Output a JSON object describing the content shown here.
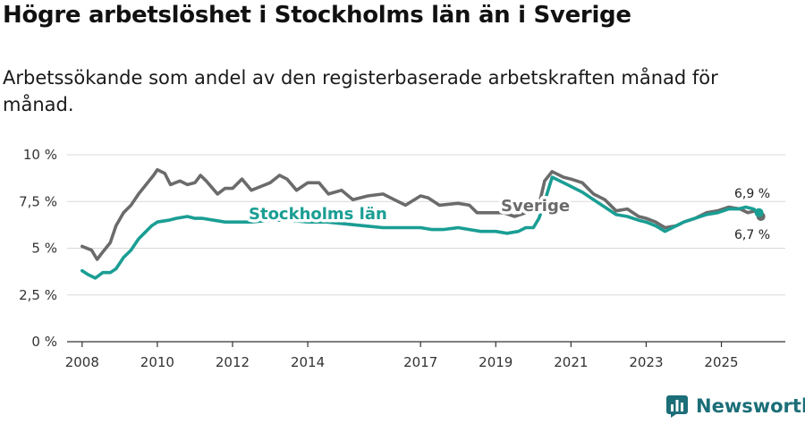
{
  "title": "Högre arbetslöshet i Stockholms län än i Sverige",
  "subtitle": "Arbetssökande som andel av den registerbaserade arbetskraften månad för månad.",
  "brand": "Newsworthy",
  "chart_data": {
    "type": "line",
    "title": "Högre arbetslöshet i Stockholms län än i Sverige",
    "ylim": [
      0,
      10
    ],
    "yticks": [
      0,
      2.5,
      5,
      7.5,
      10
    ],
    "ytick_labels": [
      "0 %",
      "2,5 %",
      "5 %",
      "7,5 %",
      "10 %"
    ],
    "xlim": [
      2007.6,
      2026.7
    ],
    "xticks": [
      2008,
      2010,
      2012,
      2014,
      2017,
      2019,
      2021,
      2023,
      2025
    ],
    "xtick_labels": [
      "2008",
      "2010",
      "2012",
      "2014",
      "2017",
      "2019",
      "2021",
      "2023",
      "2025"
    ],
    "grid": true,
    "series": [
      {
        "name": "Sverige",
        "color": "#6b6b6b",
        "label": "Sverige",
        "end_label": "6,7 %",
        "x": [
          2008.0,
          2008.25,
          2008.4,
          2008.55,
          2008.75,
          2008.9,
          2009.1,
          2009.3,
          2009.5,
          2009.7,
          2009.9,
          2010.0,
          2010.2,
          2010.35,
          2010.6,
          2010.8,
          2011.0,
          2011.15,
          2011.3,
          2011.6,
          2011.8,
          2012.0,
          2012.25,
          2012.5,
          2012.75,
          2013.0,
          2013.25,
          2013.45,
          2013.7,
          2014.0,
          2014.3,
          2014.55,
          2014.9,
          2015.2,
          2015.6,
          2016.0,
          2016.3,
          2016.6,
          2017.0,
          2017.2,
          2017.5,
          2018.0,
          2018.3,
          2018.5,
          2018.8,
          2019.2,
          2019.5,
          2019.8,
          2020.0,
          2020.15,
          2020.3,
          2020.5,
          2020.8,
          2021.0,
          2021.3,
          2021.6,
          2021.9,
          2022.2,
          2022.5,
          2022.8,
          2023.0,
          2023.25,
          2023.5,
          2023.8,
          2024.0,
          2024.3,
          2024.6,
          2024.9,
          2025.2,
          2025.5,
          2025.7,
          2025.9,
          2026.05
        ],
        "values": [
          5.1,
          4.9,
          4.4,
          4.8,
          5.3,
          6.2,
          6.9,
          7.3,
          7.9,
          8.4,
          8.9,
          9.2,
          9.0,
          8.4,
          8.6,
          8.4,
          8.5,
          8.9,
          8.6,
          7.9,
          8.2,
          8.2,
          8.7,
          8.1,
          8.3,
          8.5,
          8.9,
          8.7,
          8.1,
          8.5,
          8.5,
          7.9,
          8.1,
          7.6,
          7.8,
          7.9,
          7.6,
          7.3,
          7.8,
          7.7,
          7.3,
          7.4,
          7.3,
          6.9,
          6.9,
          6.9,
          6.7,
          6.9,
          7.0,
          7.3,
          8.6,
          9.1,
          8.8,
          8.7,
          8.5,
          7.9,
          7.6,
          7.0,
          7.1,
          6.7,
          6.6,
          6.4,
          6.1,
          6.2,
          6.4,
          6.6,
          6.9,
          7.0,
          7.2,
          7.1,
          6.9,
          7.0,
          6.7
        ]
      },
      {
        "name": "Stockholms län",
        "color": "#1a9e94",
        "label": "Stockholms län",
        "end_label": "6,9 %",
        "x": [
          2008.0,
          2008.15,
          2008.35,
          2008.55,
          2008.75,
          2008.9,
          2009.1,
          2009.3,
          2009.5,
          2009.7,
          2009.85,
          2010.0,
          2010.3,
          2010.5,
          2010.8,
          2011.0,
          2011.2,
          2011.5,
          2011.8,
          2012.0,
          2012.5,
          2013.0,
          2013.5,
          2014.0,
          2014.5,
          2015.0,
          2015.5,
          2016.0,
          2016.5,
          2017.0,
          2017.3,
          2017.6,
          2018.0,
          2018.3,
          2018.6,
          2019.0,
          2019.3,
          2019.6,
          2019.8,
          2020.0,
          2020.15,
          2020.3,
          2020.5,
          2020.8,
          2021.0,
          2021.3,
          2021.6,
          2021.9,
          2022.2,
          2022.5,
          2022.8,
          2023.0,
          2023.25,
          2023.5,
          2023.8,
          2024.0,
          2024.3,
          2024.6,
          2024.9,
          2025.2,
          2025.45,
          2025.65,
          2025.85,
          2026.0
        ],
        "values": [
          3.8,
          3.6,
          3.4,
          3.7,
          3.7,
          3.9,
          4.5,
          4.9,
          5.5,
          5.9,
          6.2,
          6.4,
          6.5,
          6.6,
          6.7,
          6.6,
          6.6,
          6.5,
          6.4,
          6.4,
          6.4,
          6.5,
          6.5,
          6.4,
          6.4,
          6.3,
          6.2,
          6.1,
          6.1,
          6.1,
          6.0,
          6.0,
          6.1,
          6.0,
          5.9,
          5.9,
          5.8,
          5.9,
          6.1,
          6.1,
          6.6,
          7.5,
          8.8,
          8.5,
          8.3,
          8.0,
          7.6,
          7.2,
          6.8,
          6.7,
          6.5,
          6.4,
          6.2,
          5.9,
          6.2,
          6.4,
          6.6,
          6.8,
          6.9,
          7.1,
          7.1,
          7.2,
          7.1,
          6.9
        ]
      }
    ]
  }
}
